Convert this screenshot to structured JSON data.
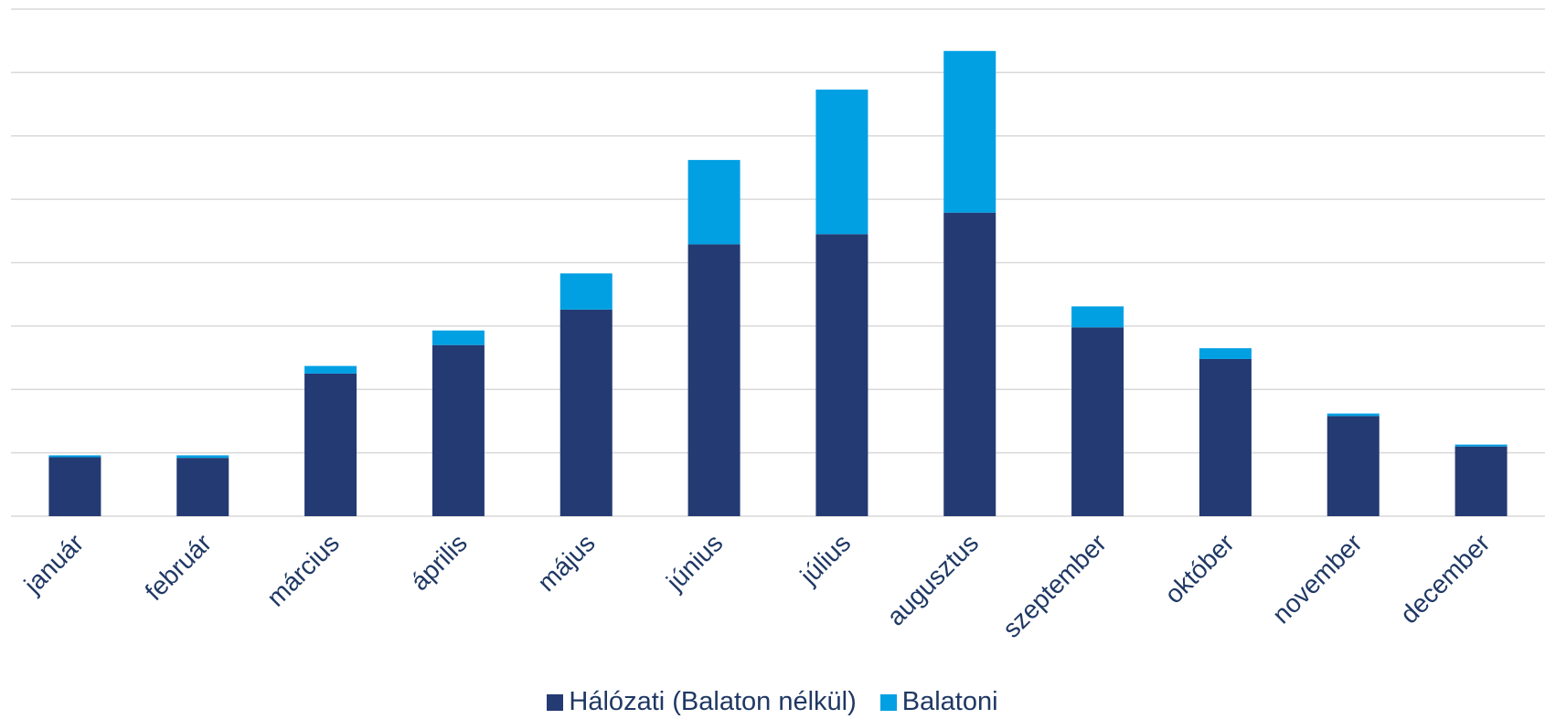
{
  "chart_data": {
    "type": "bar",
    "stacked": true,
    "title": "",
    "xlabel": "",
    "ylabel": "",
    "ylim": [
      0,
      8
    ],
    "y_gridlines": 8,
    "y_tick_labels_shown": false,
    "grid": true,
    "legend_position": "bottom",
    "categories": [
      "január",
      "február",
      "március",
      "április",
      "május",
      "június",
      "július",
      "augusztus",
      "szeptember",
      "október",
      "november",
      "december"
    ],
    "series": [
      {
        "name": "Hálózati (Balaton nélkül)",
        "color": "#243a73",
        "values": [
          0.93,
          0.92,
          2.25,
          2.7,
          3.26,
          4.29,
          4.45,
          4.79,
          2.98,
          2.48,
          1.58,
          1.1
        ]
      },
      {
        "name": "Balatoni",
        "color": "#00a0e3",
        "values": [
          0.03,
          0.04,
          0.12,
          0.23,
          0.57,
          1.33,
          2.28,
          2.55,
          0.33,
          0.17,
          0.04,
          0.03
        ]
      }
    ]
  }
}
